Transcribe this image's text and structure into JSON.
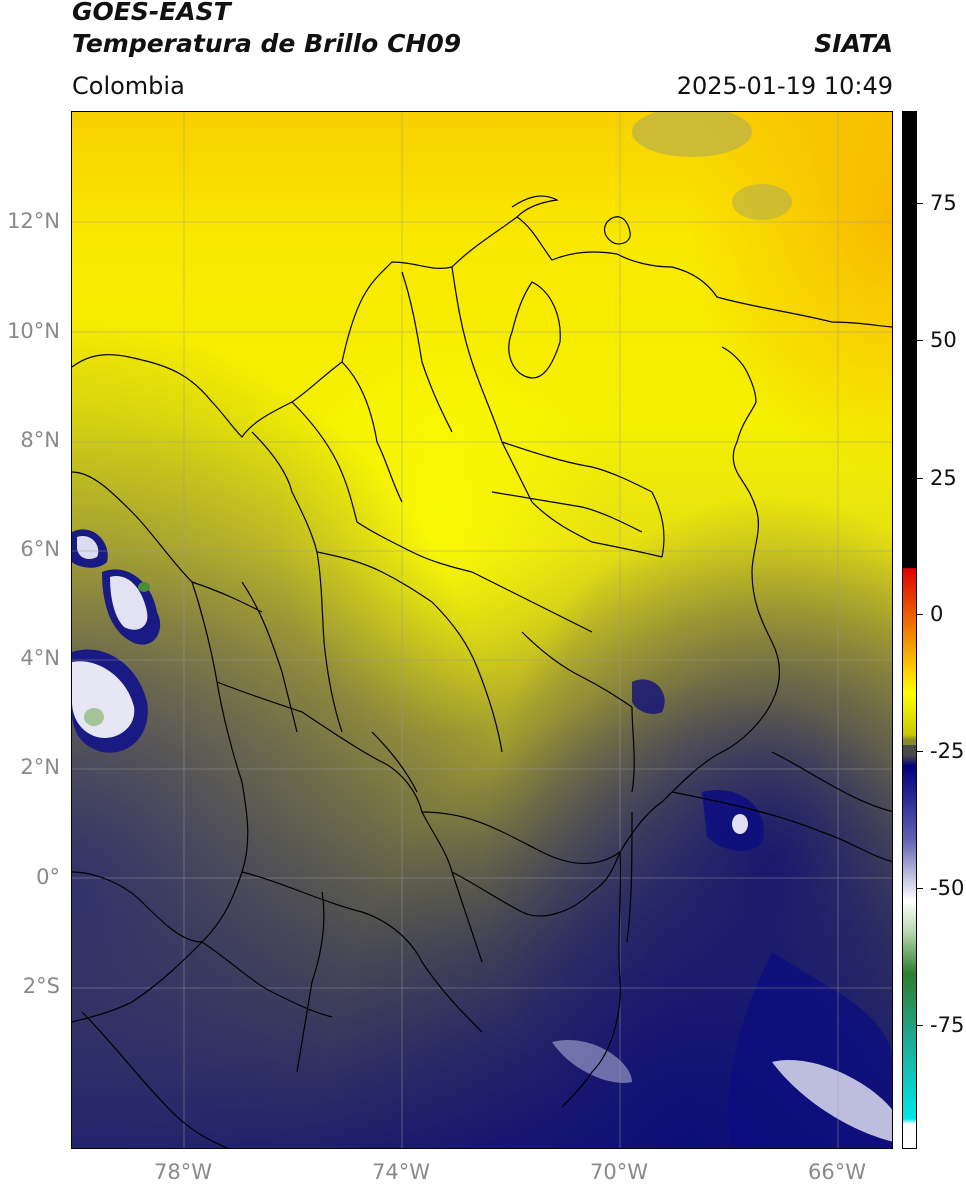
{
  "header": {
    "title_line1": "GOES-EAST",
    "title_line2": "Temperatura de Brillo CH09",
    "brand": "SIATA",
    "region": "Colombia",
    "datetime": "2025-01-19 10:49"
  },
  "map": {
    "lat_labels": [
      "12°N",
      "10°N",
      "8°N",
      "6°N",
      "4°N",
      "2°N",
      "0°",
      "2°S"
    ],
    "lon_labels": [
      "78°W",
      "74°W",
      "70°W",
      "66°W"
    ],
    "colors": {
      "warm_yellow": "#f5f000",
      "orange": "#f8b800",
      "olive": "#9a9a30",
      "dark_olive": "#55553f",
      "navy": "#14147a",
      "cloud_white": "#e8e8f5",
      "border_line": "#000000"
    }
  },
  "colorbar": {
    "tick_labels": [
      "75",
      "50",
      "25",
      "0",
      "-25",
      "-50",
      "-75"
    ],
    "colors": {
      "black": "#000000",
      "red": "#e00000",
      "orange": "#f08000",
      "yellow": "#ffff00",
      "olive": "#8a8a2a",
      "gray": "#4a4a4a",
      "navy": "#000080",
      "white": "#ffffff",
      "green": "#2e7d2e",
      "teal": "#20c8b0",
      "cyan": "#00e8e8"
    }
  }
}
